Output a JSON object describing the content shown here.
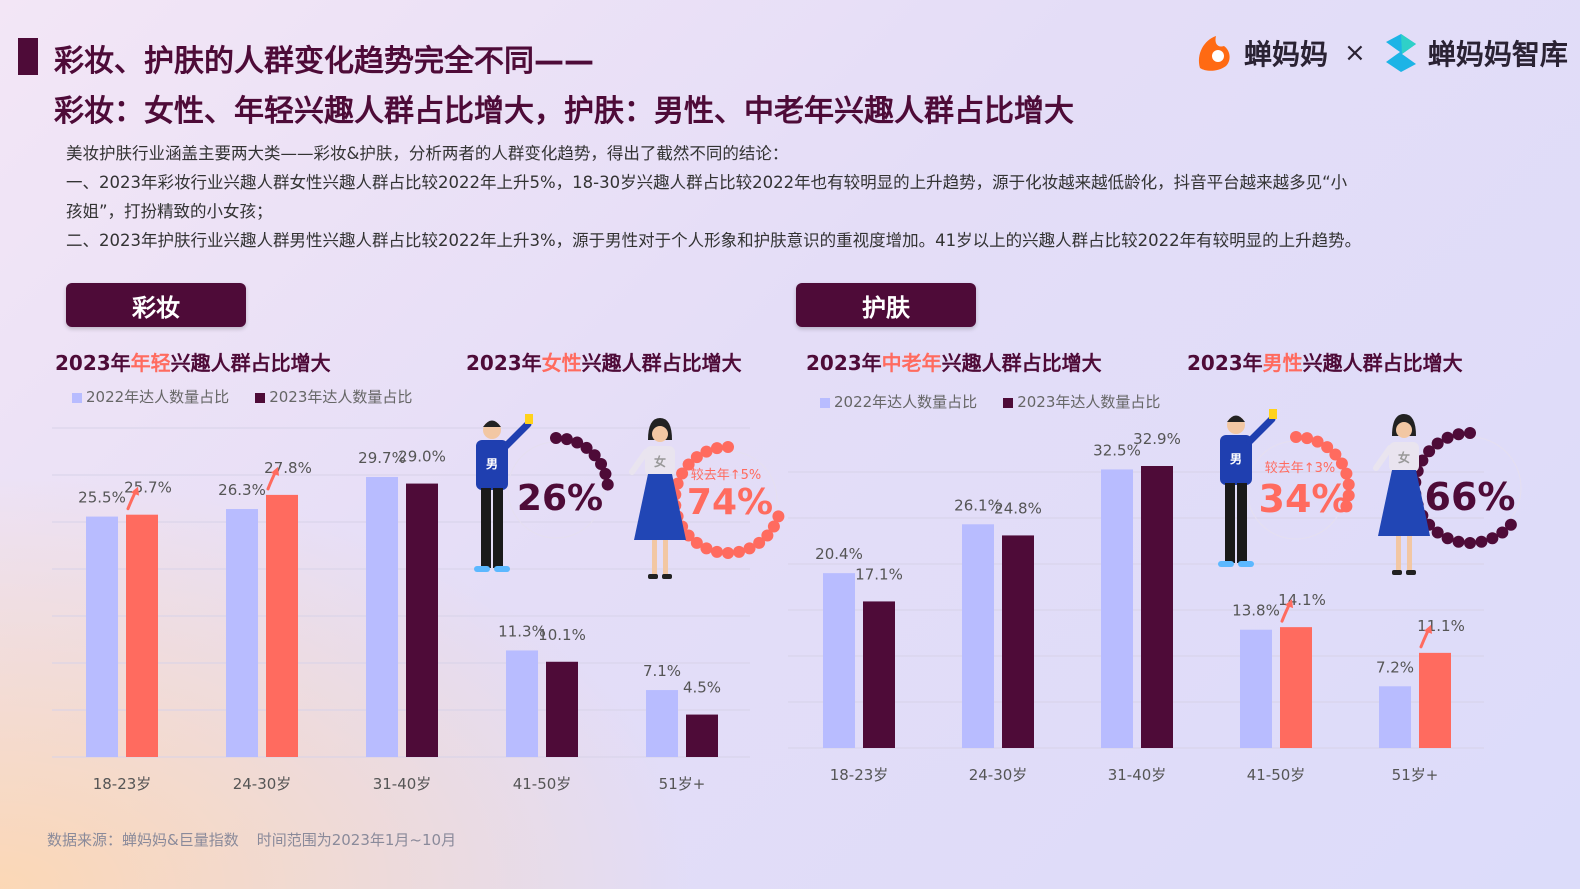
{
  "header": {
    "title_line1": "彩妆、护肤的人群变化趋势完全不同——",
    "title_line2": "彩妆：女性、年轻兴趣人群占比增大，护肤：男性、中老年兴趣人群占比增大",
    "brand_left": "蝉妈妈",
    "brand_sep": "×",
    "brand_right": "蝉妈妈智库"
  },
  "intro": {
    "line1": "美妆护肤行业涵盖主要两大类——彩妆&护肤，分析两者的人群变化趋势，得出了截然不同的结论：",
    "line2": "一、2023年彩妆行业兴趣人群女性兴趣人群占比较2022年上升5%，18-30岁兴趣人群占比较2022年也有较明显的上升趋势，源于化妆越来越低龄化，抖音平台越来越多见“小",
    "line3": "孩姐”，打扮精致的小女孩；",
    "line4": "二、2023年护肤行业兴趣人群男性兴趣人群占比较2022年上升3%，源于男性对于个人形象和护肤意识的重视度增加。41岁以上的兴趣人群占比较2022年有较明显的上升趋势。"
  },
  "makeup": {
    "pill": "彩妆",
    "age_head": {
      "pre": "2023年",
      "hl": "年轻",
      "post": "兴趣人群占比增大"
    },
    "gender_head": {
      "pre": "2023年",
      "hl": "女性",
      "post": "兴趣人群占比增大"
    },
    "gender": {
      "male_pct": "26%",
      "female_pct": "74%",
      "female_note": "较去年↑5%",
      "male_label": "男",
      "female_label": "女"
    }
  },
  "skincare": {
    "pill": "护肤",
    "age_head": {
      "pre": "2023年",
      "hl": "中老年",
      "post": "兴趣人群占比增大"
    },
    "gender_head": {
      "pre": "2023年",
      "hl": "男性",
      "post": "兴趣人群占比增大"
    },
    "gender": {
      "male_pct": "34%",
      "female_pct": "66%",
      "male_note": "较去年↑3%",
      "male_label": "男",
      "female_label": "女"
    }
  },
  "legend": {
    "s2022": "2022年达人数量占比",
    "s2023": "2023年达人数量占比"
  },
  "colors": {
    "c2022": "#b8bcff",
    "c2023": "#4e0b38",
    "c2023_up": "#ff6b5f",
    "title": "#4e0b38",
    "accent": "#ff6b5f"
  },
  "chart_data": [
    {
      "type": "bar",
      "categories": [
        "18-23岁",
        "24-30岁",
        "31-40岁",
        "41-50岁",
        "51岁+"
      ],
      "series": [
        {
          "name": "2022年达人数量占比",
          "values": [
            25.5,
            26.3,
            29.7,
            11.3,
            7.1
          ],
          "labels": [
            "25.5%",
            "26.3%",
            "29.7%",
            "11.3%",
            "7.1%"
          ]
        },
        {
          "name": "2023年达人数量占比",
          "values": [
            25.7,
            27.8,
            29.0,
            10.1,
            4.5
          ],
          "labels": [
            "25.7%",
            "27.8%",
            "29.0%",
            "10.1%",
            "4.5%"
          ]
        }
      ],
      "highlight_increase": [
        true,
        true,
        false,
        false,
        false
      ],
      "ylim": [
        0,
        35
      ]
    },
    {
      "type": "bar",
      "categories": [
        "18-23岁",
        "24-30岁",
        "31-40岁",
        "41-50岁",
        "51岁+"
      ],
      "series": [
        {
          "name": "2022年达人数量占比",
          "values": [
            20.4,
            26.1,
            32.5,
            13.8,
            7.2
          ],
          "labels": [
            "20.4%",
            "26.1%",
            "32.5%",
            "13.8%",
            "7.2%"
          ]
        },
        {
          "name": "2023年达人数量占比",
          "values": [
            17.1,
            24.8,
            32.9,
            14.1,
            11.1
          ],
          "labels": [
            "17.1%",
            "24.8%",
            "32.9%",
            "14.1%",
            "11.1%"
          ]
        }
      ],
      "highlight_increase": [
        false,
        false,
        false,
        true,
        true
      ],
      "ylim": [
        0,
        35
      ]
    },
    {
      "type": "pie",
      "categories": [
        "男",
        "女"
      ],
      "values": [
        26,
        74
      ]
    },
    {
      "type": "pie",
      "categories": [
        "男",
        "女"
      ],
      "values": [
        34,
        66
      ]
    }
  ],
  "footer": {
    "source": "数据来源：蝉妈妈&巨量指数",
    "range": "时间范围为2023年1月~10月"
  }
}
